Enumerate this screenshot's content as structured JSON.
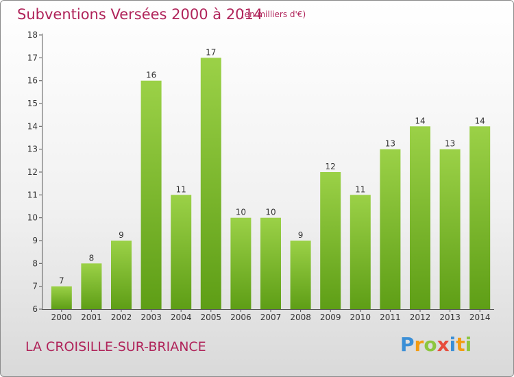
{
  "header": {
    "title": "Subventions Versées 2000 à 2014",
    "subtitle": "(en milliers d'€)"
  },
  "footer": {
    "commune": "LA CROISILLE-SUR-BRIANCE",
    "logo_letters": [
      {
        "char": "P",
        "color": "#3b8fd6"
      },
      {
        "char": "r",
        "color": "#f39c12"
      },
      {
        "char": "o",
        "color": "#8cc63f"
      },
      {
        "char": "x",
        "color": "#e74c3c"
      },
      {
        "char": "i",
        "color": "#3b8fd6"
      },
      {
        "char": "t",
        "color": "#f39c12"
      },
      {
        "char": "i",
        "color": "#8cc63f"
      }
    ]
  },
  "colors": {
    "text_accent": "#b0245a",
    "bar_light": "#9bd147",
    "bar_dark": "#5e9e16",
    "axis": "#555555"
  },
  "chart_data": {
    "type": "bar",
    "title": "Subventions Versées 2000 à 2014",
    "subtitle": "(en milliers d'€)",
    "categories": [
      "2000",
      "2001",
      "2002",
      "2003",
      "2004",
      "2005",
      "2006",
      "2007",
      "2008",
      "2009",
      "2010",
      "2011",
      "2012",
      "2013",
      "2014"
    ],
    "values": [
      7,
      8,
      9,
      16,
      11,
      17,
      10,
      10,
      9,
      12,
      11,
      13,
      14,
      13,
      14
    ],
    "ylim": [
      6,
      18
    ],
    "yticks": [
      6,
      7,
      8,
      9,
      10,
      11,
      12,
      13,
      14,
      15,
      16,
      17,
      18
    ],
    "grid": false,
    "data_labels": true
  }
}
